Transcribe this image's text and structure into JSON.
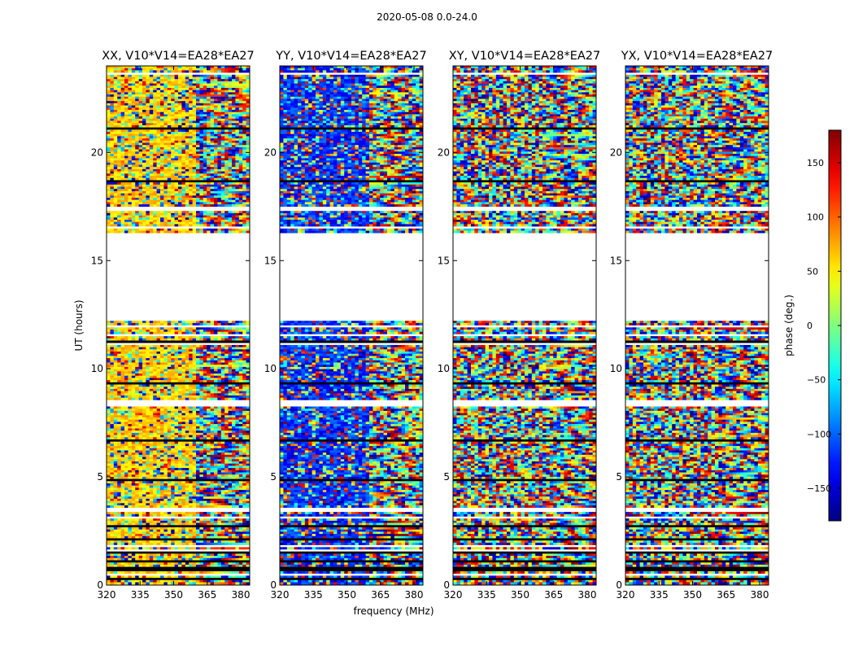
{
  "chart_data": {
    "type": "heatmap",
    "title": "2020-05-08 0.0-24.0",
    "xlabel": "frequency (MHz)",
    "ylabel": "UT (hours)",
    "xlim": [
      320,
      384
    ],
    "ylim": [
      0,
      24
    ],
    "x_ticks": [
      320,
      335,
      350,
      365,
      380
    ],
    "y_ticks": [
      0,
      5,
      10,
      15,
      20
    ],
    "colorbar": {
      "label": "phase (deg.)",
      "range": [
        -180,
        180
      ],
      "ticks": [
        -150,
        -100,
        -50,
        0,
        50,
        100,
        150
      ],
      "colormap": "jet"
    },
    "data_gap_hours": [
      12.3,
      16.3
    ],
    "panels": [
      {
        "title": "XX, V10*V14=EA28*EA27",
        "bias": "yellow-orange phase near +60 deg"
      },
      {
        "title": "YY, V10*V14=EA28*EA27",
        "bias": "blue phase near -140 deg"
      },
      {
        "title": "XY, V10*V14=EA28*EA27",
        "bias": "random phase"
      },
      {
        "title": "YX, V10*V14=EA28*EA27",
        "bias": "random phase"
      }
    ]
  },
  "tick_text": {
    "y": [
      "0",
      "5",
      "10",
      "15",
      "20"
    ],
    "x": [
      "320",
      "335",
      "350",
      "365",
      "380"
    ],
    "cbar": [
      "−150",
      "−100",
      "−50",
      "0",
      "50",
      "100",
      "150"
    ]
  }
}
